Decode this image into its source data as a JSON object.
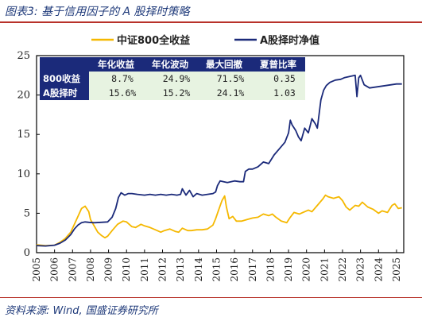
{
  "figure_title": "图表3:  基于信用因子的 A 股择时策略",
  "source": "资料来源: Wind, 国盛证券研究所",
  "chart_data": {
    "type": "line",
    "title": "",
    "xlabel": "",
    "ylabel": "",
    "ylim": [
      0,
      25
    ],
    "xlim": [
      2005,
      2025.4
    ],
    "y_ticks": [
      0,
      5,
      10,
      15,
      20,
      25
    ],
    "x_ticks": [
      "2005",
      "2006",
      "2007",
      "2008",
      "2009",
      "2010",
      "2011",
      "2012",
      "2013",
      "2014",
      "2015",
      "2016",
      "2017",
      "2018",
      "2019",
      "2020",
      "2021",
      "2022",
      "2023",
      "2024",
      "2025"
    ],
    "grid": false,
    "legend_position": "top",
    "series": [
      {
        "name": "中证800全收益",
        "color": "#f5b800",
        "x": [
          2005.0,
          2005.5,
          2006.0,
          2006.3,
          2006.6,
          2006.9,
          2007.1,
          2007.3,
          2007.5,
          2007.7,
          2007.9,
          2008.0,
          2008.2,
          2008.4,
          2008.6,
          2008.8,
          2008.95,
          2009.2,
          2009.5,
          2009.8,
          2010.0,
          2010.3,
          2010.5,
          2010.8,
          2011.0,
          2011.3,
          2011.6,
          2011.9,
          2012.1,
          2012.4,
          2012.7,
          2012.9,
          2013.1,
          2013.4,
          2013.6,
          2013.9,
          2014.2,
          2014.5,
          2014.8,
          2014.95,
          2015.1,
          2015.3,
          2015.45,
          2015.55,
          2015.7,
          2015.9,
          2016.1,
          2016.4,
          2016.7,
          2017.0,
          2017.3,
          2017.6,
          2017.9,
          2018.1,
          2018.3,
          2018.6,
          2018.9,
          2019.1,
          2019.3,
          2019.6,
          2019.9,
          2020.1,
          2020.3,
          2020.6,
          2020.9,
          2021.05,
          2021.2,
          2021.5,
          2021.8,
          2022.0,
          2022.2,
          2022.4,
          2022.7,
          2022.9,
          2023.1,
          2023.4,
          2023.7,
          2024.0,
          2024.2,
          2024.5,
          2024.75,
          2024.9,
          2025.1,
          2025.3
        ],
        "y": [
          1.0,
          0.9,
          0.95,
          1.3,
          1.8,
          2.6,
          3.6,
          4.6,
          5.6,
          5.9,
          5.2,
          4.2,
          3.4,
          2.6,
          2.2,
          1.9,
          2.1,
          2.8,
          3.6,
          4.0,
          3.9,
          3.3,
          3.2,
          3.6,
          3.4,
          3.2,
          2.9,
          2.6,
          2.8,
          3.0,
          2.7,
          2.6,
          3.1,
          2.8,
          2.8,
          2.9,
          2.9,
          3.0,
          3.5,
          4.3,
          5.3,
          6.6,
          7.2,
          5.8,
          4.3,
          4.6,
          4.0,
          4.0,
          4.2,
          4.4,
          4.5,
          4.9,
          4.7,
          4.9,
          4.5,
          4.0,
          3.8,
          4.5,
          5.1,
          4.9,
          5.2,
          5.4,
          5.2,
          6.0,
          6.8,
          7.3,
          7.1,
          6.9,
          7.1,
          6.6,
          5.8,
          5.4,
          6.0,
          5.9,
          6.4,
          5.8,
          5.5,
          5.0,
          5.3,
          5.1,
          6.0,
          6.2,
          5.6,
          5.7
        ]
      },
      {
        "name": "A股择时净值",
        "color": "#1b2a7a",
        "x": [
          2005.0,
          2005.5,
          2006.0,
          2006.3,
          2006.6,
          2006.9,
          2007.1,
          2007.3,
          2007.5,
          2007.7,
          2007.9,
          2008.2,
          2008.6,
          2008.95,
          2009.2,
          2009.4,
          2009.55,
          2009.7,
          2009.9,
          2010.1,
          2010.3,
          2010.6,
          2011.0,
          2011.3,
          2011.6,
          2011.9,
          2012.2,
          2012.5,
          2012.8,
          2013.0,
          2013.1,
          2013.3,
          2013.5,
          2013.7,
          2013.9,
          2014.2,
          2014.5,
          2014.8,
          2014.95,
          2015.05,
          2015.2,
          2015.4,
          2015.6,
          2015.8,
          2016.0,
          2016.3,
          2016.5,
          2016.6,
          2016.8,
          2017.0,
          2017.3,
          2017.6,
          2017.9,
          2018.2,
          2018.5,
          2018.8,
          2019.0,
          2019.1,
          2019.2,
          2019.4,
          2019.55,
          2019.7,
          2019.9,
          2020.1,
          2020.3,
          2020.5,
          2020.6,
          2020.8,
          2020.95,
          2021.1,
          2021.3,
          2021.6,
          2021.9,
          2022.1,
          2022.3,
          2022.5,
          2022.7,
          2022.8,
          2022.9,
          2023.0,
          2023.2,
          2023.5,
          2023.8,
          2024.1,
          2024.4,
          2024.7,
          2025.0,
          2025.3
        ],
        "y": [
          0.9,
          0.85,
          0.95,
          1.2,
          1.6,
          2.3,
          3.0,
          3.5,
          3.8,
          3.9,
          3.85,
          3.8,
          3.85,
          3.9,
          4.5,
          5.6,
          7.0,
          7.6,
          7.3,
          7.5,
          7.5,
          7.4,
          7.3,
          7.4,
          7.3,
          7.4,
          7.3,
          7.4,
          7.3,
          7.4,
          8.1,
          7.3,
          7.9,
          7.1,
          7.5,
          7.3,
          7.4,
          7.5,
          7.7,
          8.5,
          9.1,
          9.0,
          8.9,
          9.0,
          9.1,
          9.0,
          9.0,
          10.3,
          10.6,
          10.6,
          10.9,
          11.5,
          11.3,
          12.4,
          13.2,
          14.0,
          15.2,
          16.8,
          16.2,
          15.5,
          14.7,
          14.2,
          15.8,
          15.2,
          17.0,
          16.3,
          15.8,
          19.4,
          20.6,
          21.2,
          21.6,
          21.9,
          22.0,
          22.2,
          22.3,
          22.4,
          22.5,
          19.8,
          22.2,
          22.5,
          21.3,
          20.9,
          21.0,
          21.1,
          21.2,
          21.3,
          21.4,
          21.4
        ]
      }
    ],
    "table": {
      "columns": [
        "年化收益",
        "年化波动",
        "最大回撤",
        "夏普比率"
      ],
      "rows": [
        {
          "label": "800收益",
          "values": [
            "8.7%",
            "24.9%",
            "71.5%",
            "0.35"
          ]
        },
        {
          "label": "A股择时",
          "values": [
            "15.6%",
            "15.2%",
            "24.1%",
            "1.03"
          ]
        }
      ]
    }
  },
  "colors": {
    "table_header_bg": "#1b2a7a",
    "table_cell_bg": "#e7f3e1",
    "accent_rule": "#b8322a",
    "title_text": "#1f3a7a"
  }
}
